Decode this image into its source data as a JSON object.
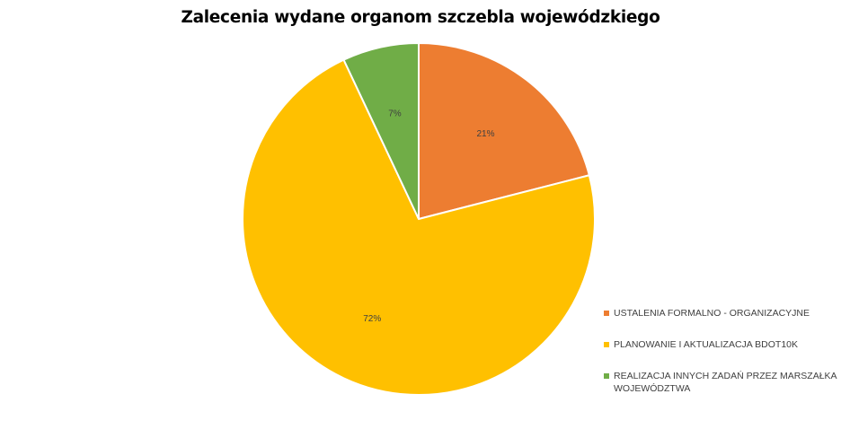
{
  "chart_data": {
    "type": "pie",
    "title": "Zalecenia wydane organom szczebla wojewódzkiego",
    "categories": [
      "USTALENIA FORMALNO - ORGANIZACYJNE",
      "PLANOWANIE I AKTUALIZACJA BDOT10K",
      "REALIZACJA INNYCH ZADAŃ PRZEZ MARSZAŁKA WOJEWÓDZTWA"
    ],
    "values": [
      21,
      72,
      7
    ],
    "data_labels": [
      "21%",
      "72%",
      "7%"
    ],
    "colors": [
      "#ED7D31",
      "#FFC000",
      "#70AD47"
    ],
    "start_angle": "12 o'clock, clockwise",
    "legend_position": "right-bottom"
  },
  "title": "Zalecenia wydane organom szczebla wojewódzkiego",
  "legend": [
    {
      "label": "USTALENIA FORMALNO - ORGANIZACYJNE",
      "color": "#ED7D31"
    },
    {
      "label": "PLANOWANIE I AKTUALIZACJA BDOT10K",
      "color": "#FFC000"
    },
    {
      "label": "REALIZACJA INNYCH ZADAŃ PRZEZ MARSZAŁKA WOJEWÓDZTWA",
      "color": "#70AD47"
    }
  ]
}
